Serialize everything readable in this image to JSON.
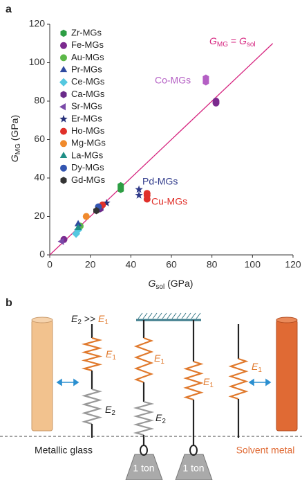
{
  "chart_data": {
    "type": "scatter",
    "panel_label": "a",
    "x_label": {
      "main": "G",
      "sub": "sol",
      "rest": " (GPa)"
    },
    "y_label": {
      "main": "G",
      "sub": "MG",
      "rest": " (GPa)"
    },
    "xlim": [
      0,
      120
    ],
    "ylim": [
      0,
      120
    ],
    "xticks": [
      0,
      20,
      40,
      60,
      80,
      100,
      120
    ],
    "yticks": [
      0,
      20,
      40,
      60,
      80,
      100,
      120
    ],
    "reference_line": {
      "x": [
        0,
        110
      ],
      "y": [
        0,
        110
      ],
      "color": "#d6247f",
      "label": {
        "main": "G",
        "sub": "MG",
        "mid": " = ",
        "main2": "G",
        "sub2": "sol"
      }
    },
    "series": [
      {
        "name": "Zr-MGs",
        "color": "#2e9e44",
        "marker": "hexagon",
        "legend": true,
        "x": [
          35,
          35
        ],
        "values": [
          34,
          36
        ]
      },
      {
        "name": "Fe-MGs",
        "color": "#7b2a8e",
        "marker": "circle",
        "legend": true,
        "x": [
          82,
          82,
          7
        ],
        "values": [
          79,
          80,
          8
        ]
      },
      {
        "name": "Au-MGs",
        "color": "#5cb848",
        "marker": "circle",
        "legend": true,
        "x": [
          15
        ],
        "values": [
          15
        ]
      },
      {
        "name": "Pr-MGs",
        "color": "#2f4aa0",
        "marker": "triangle",
        "legend": true,
        "x": [
          14
        ],
        "values": [
          16
        ]
      },
      {
        "name": "Ce-MGs",
        "color": "#55c8e0",
        "marker": "diamond",
        "legend": true,
        "x": [
          13,
          14
        ],
        "values": [
          11,
          13
        ]
      },
      {
        "name": "Ca-MGs",
        "color": "#6a2a8a",
        "marker": "hexagon",
        "legend": true,
        "x": [
          25
        ],
        "values": [
          24
        ]
      },
      {
        "name": "Sr-MGs",
        "color": "#7a4aa8",
        "marker": "left-triangle",
        "legend": true,
        "x": [
          6
        ],
        "values": [
          7
        ]
      },
      {
        "name": "Er-MGs",
        "color": "#26307a",
        "marker": "star",
        "legend": true,
        "x": [
          28
        ],
        "values": [
          27
        ]
      },
      {
        "name": "Ho-MGs",
        "color": "#e0302a",
        "marker": "circle",
        "legend": true,
        "x": [
          26
        ],
        "values": [
          26
        ]
      },
      {
        "name": "Mg-MGs",
        "color": "#f08a2c",
        "marker": "circle",
        "legend": true,
        "x": [
          18
        ],
        "values": [
          20
        ]
      },
      {
        "name": "La-MGs",
        "color": "#1f8f86",
        "marker": "triangle",
        "legend": true,
        "x": [
          14
        ],
        "values": [
          14
        ]
      },
      {
        "name": "Dy-MGs",
        "color": "#3355b0",
        "marker": "circle",
        "legend": true,
        "x": [
          24
        ],
        "values": [
          25
        ]
      },
      {
        "name": "Gd-MGs",
        "color": "#333333",
        "marker": "hexagon",
        "legend": true,
        "x": [
          23
        ],
        "values": [
          23
        ]
      },
      {
        "name": "Co-MGs",
        "color": "#b45fc4",
        "marker": "hexagon",
        "legend": false,
        "x": [
          77,
          77
        ],
        "values": [
          90,
          92
        ]
      },
      {
        "name": "Pd-MGs",
        "color": "#2f3a8a",
        "marker": "star",
        "legend": false,
        "x": [
          44,
          44
        ],
        "values": [
          31,
          34
        ]
      },
      {
        "name": "Cu-MGs",
        "color": "#e0302a",
        "marker": "circle",
        "legend": false,
        "x": [
          48,
          48,
          48
        ],
        "values": [
          29,
          31,
          32
        ]
      }
    ]
  },
  "diagram": {
    "panel_label": "b",
    "relation": {
      "e2": "E",
      "e2_sub": "2",
      "op": " >> ",
      "e1": "E",
      "e1_sub": "1"
    },
    "spring_labels": [
      {
        "main": "E",
        "sub": "1"
      },
      {
        "main": "E",
        "sub": "2"
      },
      {
        "main": "E",
        "sub": "1"
      },
      {
        "main": "E",
        "sub": "2"
      },
      {
        "main": "E",
        "sub": "1"
      },
      {
        "main": "E",
        "sub": "1"
      }
    ],
    "left_label": "Metallic glass",
    "right_label": "Solvent metal",
    "weights": [
      "1 ton",
      "1 ton"
    ]
  }
}
